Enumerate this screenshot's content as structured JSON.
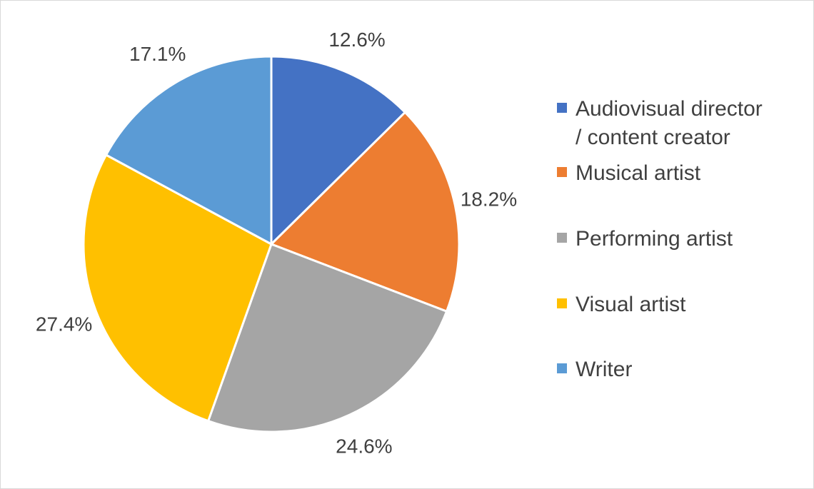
{
  "chart_data": {
    "type": "pie",
    "categories": [
      "Audiovisual director / content creator",
      "Musical artist",
      "Performing artist",
      "Visual artist",
      "Writer"
    ],
    "values": [
      12.6,
      18.2,
      24.6,
      27.4,
      17.1
    ],
    "data_labels": [
      "12.6%",
      "18.2%",
      "24.6%",
      "27.4%",
      "17.1%"
    ],
    "colors": [
      "#4472C4",
      "#ED7D31",
      "#A5A5A5",
      "#FFC000",
      "#5B9BD5"
    ],
    "start_angle": "12 o'clock, clockwise",
    "legend_placement": "right",
    "legend": [
      {
        "lines": [
          "Audiovisual director",
          "/ content creator"
        ]
      },
      {
        "lines": [
          "Musical artist"
        ]
      },
      {
        "lines": [
          "Performing artist"
        ]
      },
      {
        "lines": [
          "Visual artist"
        ]
      },
      {
        "lines": [
          "Writer"
        ]
      }
    ],
    "title": ""
  }
}
